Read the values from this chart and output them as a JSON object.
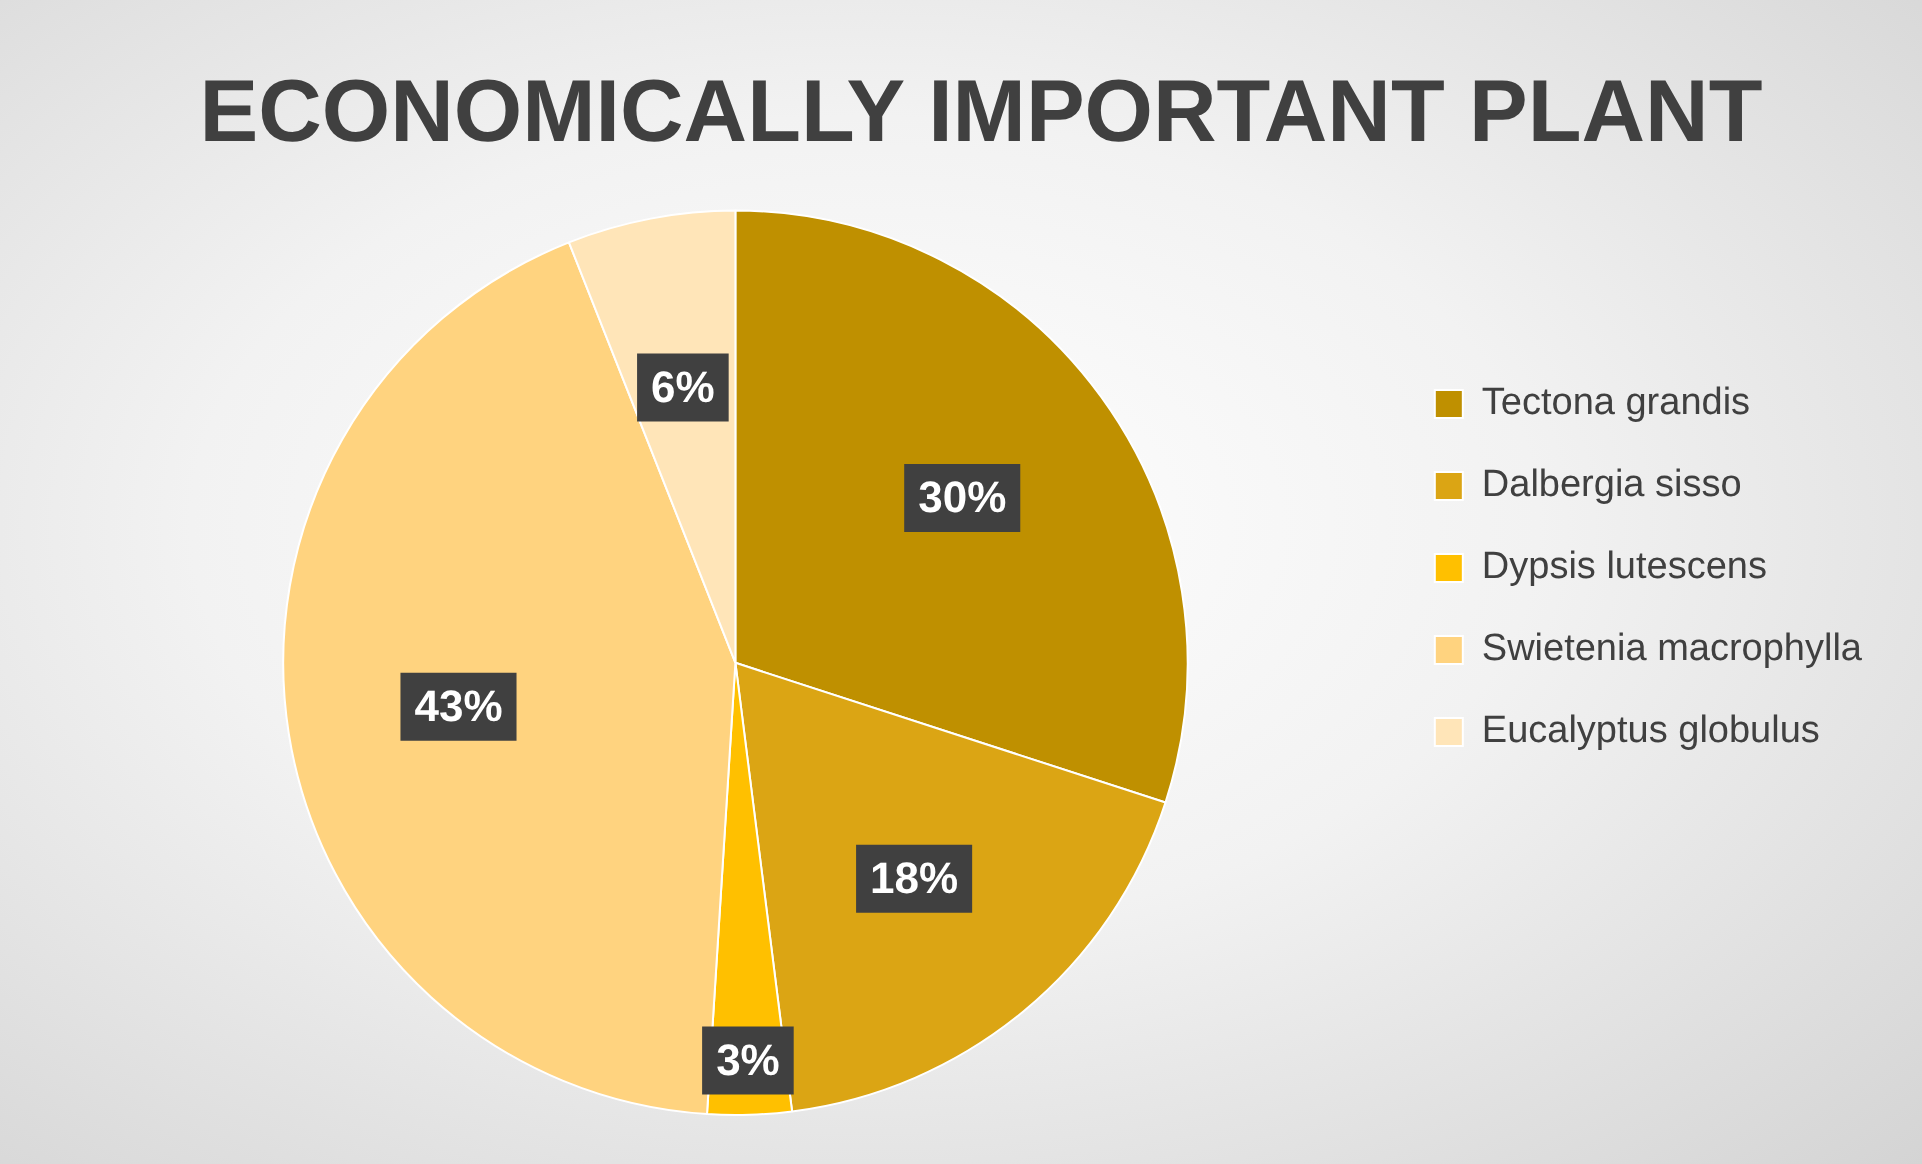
{
  "chart_data": {
    "type": "pie",
    "title": "ECONOMICALLY IMPORTANT PLANT",
    "categories": [
      "Tectona grandis",
      "Dalbergia sisso",
      "Dypsis lutescens",
      "Swietenia macrophylla",
      "Eucalyptus globulus"
    ],
    "values": [
      30,
      18,
      3,
      43,
      6
    ],
    "colors": [
      "#bf9000",
      "#dba514",
      "#ffc000",
      "#ffd37f",
      "#ffe5b8"
    ],
    "value_labels": [
      "30%",
      "18%",
      "3%",
      "43%",
      "6%"
    ],
    "legend": "right"
  }
}
